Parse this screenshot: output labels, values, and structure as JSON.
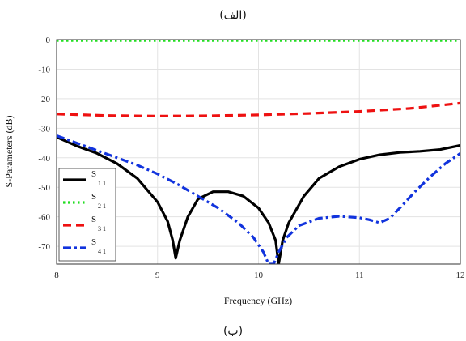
{
  "caption_top": "(الف)",
  "caption_bottom": "(ب)",
  "chart_data": {
    "type": "line",
    "title": "",
    "xlabel": "Frequency (GHz)",
    "ylabel": "S-Parameters (dB)",
    "xlim": [
      8,
      12
    ],
    "ylim": [
      -76,
      0
    ],
    "xticks": [
      8,
      9,
      10,
      11,
      12
    ],
    "yticks": [
      0,
      -10,
      -20,
      -30,
      -40,
      -50,
      -60,
      -70
    ],
    "grid": true,
    "legend_position": "bottom-left",
    "series": [
      {
        "name": "S11",
        "legend_main": "S",
        "legend_sub": "1 1",
        "color": "#000000",
        "style": "solid",
        "x": [
          8.0,
          8.2,
          8.4,
          8.6,
          8.8,
          9.0,
          9.1,
          9.15,
          9.18,
          9.22,
          9.3,
          9.4,
          9.55,
          9.7,
          9.85,
          10.0,
          10.1,
          10.17,
          10.2,
          10.24,
          10.3,
          10.45,
          10.6,
          10.8,
          11.0,
          11.2,
          11.4,
          11.6,
          11.8,
          12.0
        ],
        "values": [
          -33,
          -36,
          -38.5,
          -42,
          -47,
          -55,
          -61.5,
          -68,
          -74,
          -68,
          -60,
          -54,
          -51.5,
          -51.5,
          -53,
          -57,
          -62,
          -68,
          -76,
          -68,
          -62,
          -53,
          -47,
          -43,
          -40.5,
          -39,
          -38.2,
          -37.8,
          -37.2,
          -35.8
        ]
      },
      {
        "name": "S21",
        "legend_main": "S",
        "legend_sub": "2 1",
        "color": "#22dd22",
        "style": "dotted",
        "x": [
          8.0,
          9.0,
          10.0,
          11.0,
          12.0
        ],
        "values": [
          -0.3,
          -0.3,
          -0.3,
          -0.3,
          -0.3
        ]
      },
      {
        "name": "S31",
        "legend_main": "S",
        "legend_sub": "3 1",
        "color": "#ee1111",
        "style": "dashed",
        "x": [
          8.0,
          8.5,
          9.0,
          9.5,
          10.0,
          10.5,
          11.0,
          11.5,
          12.0
        ],
        "values": [
          -25.2,
          -25.7,
          -25.9,
          -25.8,
          -25.5,
          -25.0,
          -24.3,
          -23.3,
          -21.5
        ]
      },
      {
        "name": "S41",
        "legend_main": "S",
        "legend_sub": "4 1",
        "color": "#1133dd",
        "style": "dashdot",
        "x": [
          8.0,
          8.2,
          8.4,
          8.6,
          8.8,
          9.0,
          9.2,
          9.4,
          9.6,
          9.8,
          9.95,
          10.05,
          10.1,
          10.15,
          10.2,
          10.28,
          10.4,
          10.6,
          10.8,
          11.0,
          11.1,
          11.2,
          11.3,
          11.4,
          11.55,
          11.7,
          11.85,
          12.0
        ],
        "values": [
          -32.5,
          -35,
          -37.5,
          -40,
          -42.5,
          -45.5,
          -49,
          -53,
          -57,
          -62,
          -67,
          -72,
          -76,
          -76,
          -72,
          -67,
          -63,
          -60.5,
          -59.8,
          -60.3,
          -61,
          -62,
          -60.5,
          -57,
          -51.5,
          -46.5,
          -42,
          -38.5
        ]
      }
    ]
  }
}
